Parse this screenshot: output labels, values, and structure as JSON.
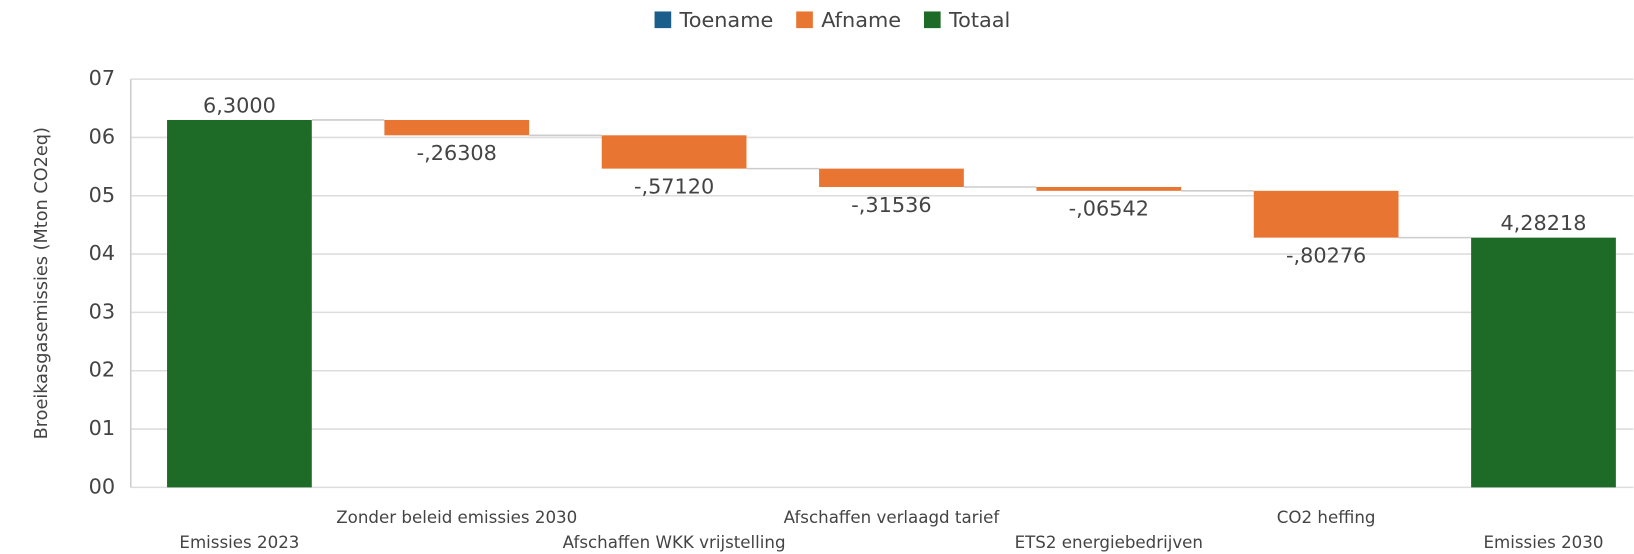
{
  "chart_data": {
    "type": "waterfall",
    "categories": [
      "Emissies 2023",
      "Zonder beleid emissies 2030",
      "Afschaffen WKK vrijstelling",
      "Afschaffen verlaagd tarief",
      "ETS2 energiebedrijven",
      "CO2 heffing",
      "Emissies 2030"
    ],
    "series": [
      {
        "name": "Toename",
        "color": "#1b5e8c",
        "values": [
          null,
          null,
          null,
          null,
          null,
          null,
          null
        ]
      },
      {
        "name": "Afname",
        "color": "#e87532",
        "values": [
          null,
          -0.26308,
          -0.5712,
          -0.31536,
          -0.06542,
          -0.80276,
          null
        ],
        "value_labels": [
          null,
          "-,26308",
          "-,57120",
          "-,31536",
          "-,06542",
          "-,80276",
          null
        ]
      },
      {
        "name": "Totaal",
        "color": "#1d6b27",
        "values": [
          6.3,
          null,
          null,
          null,
          null,
          null,
          4.28218
        ],
        "value_labels": [
          "6,3000",
          null,
          null,
          null,
          null,
          null,
          "4,28218"
        ]
      }
    ],
    "y_label": "Broeikasgasemissies (Mton CO2eq)",
    "ylim": [
      0,
      7
    ],
    "yticks": [
      {
        "value": 0,
        "label": "00"
      },
      {
        "value": 1,
        "label": "01"
      },
      {
        "value": 2,
        "label": "02"
      },
      {
        "value": 3,
        "label": "03"
      },
      {
        "value": 4,
        "label": "04"
      },
      {
        "value": 5,
        "label": "05"
      },
      {
        "value": 6,
        "label": "06"
      },
      {
        "value": 7,
        "label": "07"
      }
    ],
    "grid": true
  }
}
